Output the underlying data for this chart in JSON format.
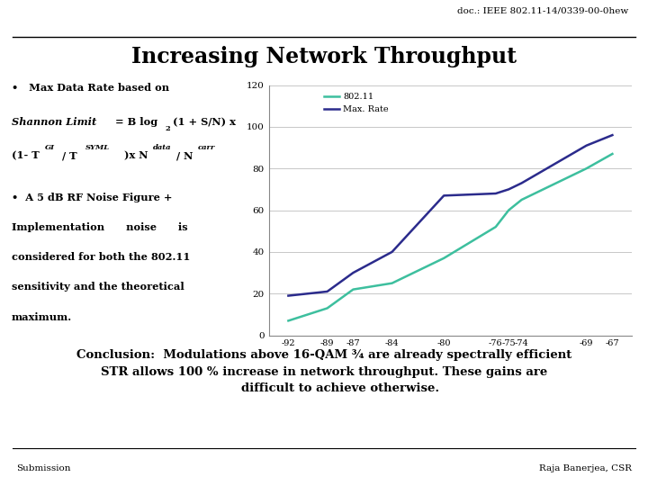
{
  "title": "Increasing Network Throughput",
  "header": "doc.: IEEE 802.11-14/0339-00-0hew",
  "footer_left": "Submission",
  "footer_right": "Raja Banerjea, CSR",
  "x_values": [
    -92,
    -89,
    -87,
    -84,
    -80,
    -76,
    -75,
    -74,
    -69,
    -67
  ],
  "line_802_11": [
    7,
    13,
    22,
    25,
    37,
    52,
    60,
    65,
    80,
    87
  ],
  "line_max_rate": [
    19,
    21,
    30,
    40,
    67,
    68,
    70,
    73,
    91,
    96
  ],
  "x_ticks": [
    -92,
    -89,
    -87,
    -84,
    -80,
    -76,
    -75,
    -74,
    -69,
    -67
  ],
  "y_ticks": [
    0,
    20,
    40,
    60,
    80,
    100,
    120
  ],
  "ylim": [
    0,
    120
  ],
  "color_802_11": "#3dbf9e",
  "color_max_rate": "#2b2b8c",
  "legend_802_11": "802.11",
  "legend_max_rate": "Max. Rate",
  "conclusion": "Conclusion:  Modulations above 16-QAM ¾ are already spectrally efficient\nSTR allows 100 % increase in network throughput. These gains are\n        difficult to achieve otherwise.",
  "bg_color": "#ffffff",
  "grid_color": "#b0b0b0",
  "line_width": 1.8
}
